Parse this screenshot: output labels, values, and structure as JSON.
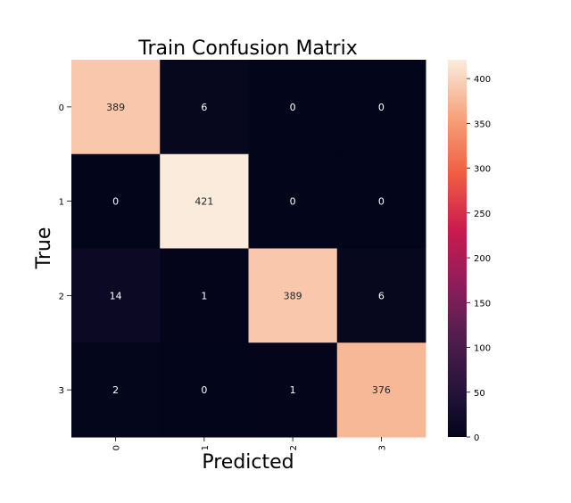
{
  "chart_data": {
    "type": "heatmap",
    "title": "Train Confusion Matrix",
    "xlabel": "Predicted",
    "ylabel": "True",
    "x_categories": [
      "0",
      "1",
      "2",
      "3"
    ],
    "y_categories": [
      "0",
      "1",
      "2",
      "3"
    ],
    "values": [
      [
        389,
        6,
        0,
        0
      ],
      [
        0,
        421,
        0,
        0
      ],
      [
        14,
        1,
        389,
        6
      ],
      [
        2,
        0,
        1,
        376
      ]
    ],
    "colorbar": {
      "colormap": "rocket",
      "range": [
        0,
        421
      ],
      "ticks": [
        0,
        50,
        100,
        150,
        200,
        250,
        300,
        350,
        400
      ],
      "position": "right"
    },
    "grid": false
  }
}
